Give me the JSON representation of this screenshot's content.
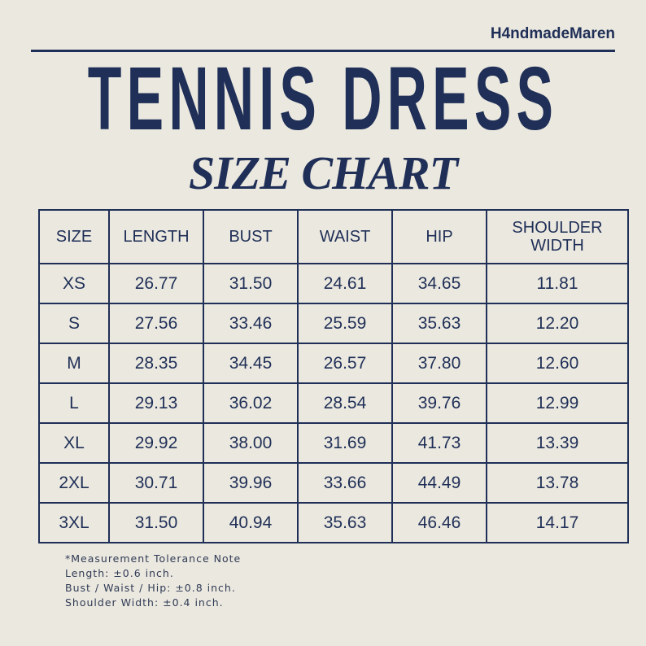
{
  "brand": "H4ndmadeMaren",
  "title": "TENNIS DRESS",
  "subtitle": "SIZE CHART",
  "table": {
    "headers": [
      "SIZE",
      "LENGTH",
      "BUST",
      "WAIST",
      "HIP",
      "SHOULDER WIDTH"
    ],
    "rows": [
      [
        "XS",
        "26.77",
        "31.50",
        "24.61",
        "34.65",
        "11.81"
      ],
      [
        "S",
        "27.56",
        "33.46",
        "25.59",
        "35.63",
        "12.20"
      ],
      [
        "M",
        "28.35",
        "34.45",
        "26.57",
        "37.80",
        "12.60"
      ],
      [
        "L",
        "29.13",
        "36.02",
        "28.54",
        "39.76",
        "12.99"
      ],
      [
        "XL",
        "29.92",
        "38.00",
        "31.69",
        "41.73",
        "13.39"
      ],
      [
        "2XL",
        "30.71",
        "39.96",
        "33.66",
        "44.49",
        "13.78"
      ],
      [
        "3XL",
        "31.50",
        "40.94",
        "35.63",
        "46.46",
        "14.17"
      ]
    ]
  },
  "note": [
    "*Measurement Tolerance Note",
    "Length: ±0.6 inch.",
    "Bust / Waist / Hip: ±0.8 inch.",
    "Shoulder Width: ±0.4 inch."
  ],
  "colors": {
    "navy": "#1f2f57",
    "background": "#ebe8df"
  }
}
